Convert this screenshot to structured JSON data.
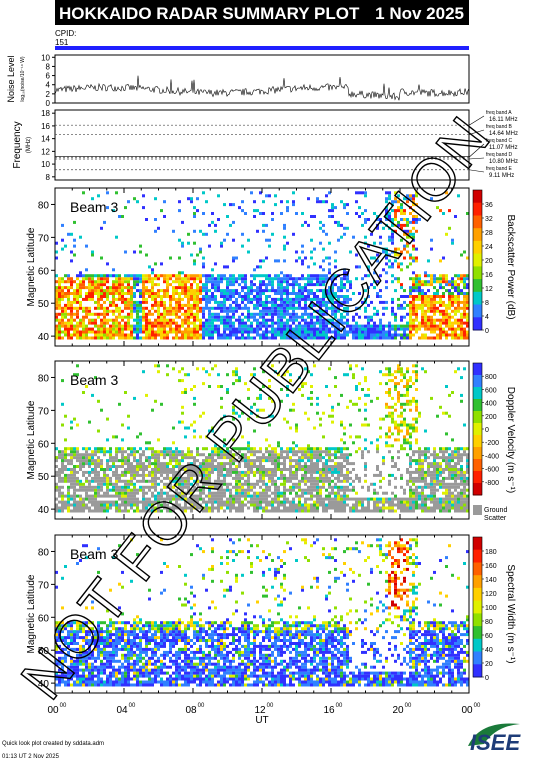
{
  "header": {
    "title": "HOKKAIDO RADAR SUMMARY PLOT",
    "date": "1 Nov 2025"
  },
  "cpid": {
    "label": "CPID:",
    "value": "151"
  },
  "noise_panel": {
    "ylabel": "Noise Level",
    "sublabel": "log₁₀(noise/10⁻¹⁸ W)",
    "ticks": [
      "0",
      "2",
      "4",
      "6",
      "8",
      "10"
    ]
  },
  "freq_panel": {
    "ylabel": "Frequency",
    "unit": "(MHz)",
    "ticks": [
      "8",
      "10",
      "12",
      "14",
      "16",
      "18"
    ],
    "bands": [
      {
        "name": "freq band A",
        "value": "16.11 MHz",
        "mhz": 16.11
      },
      {
        "name": "freq band B",
        "value": "14.64 MHz",
        "mhz": 14.64
      },
      {
        "name": "freq band C",
        "value": "11.07 MHz",
        "mhz": 11.07
      },
      {
        "name": "freq band D",
        "value": "10.80 MHz",
        "mhz": 10.8
      },
      {
        "name": "freq band E",
        "value": "9.11 MHz",
        "mhz": 9.11
      }
    ]
  },
  "chart_data": [
    {
      "type": "heatmap",
      "title": "Beam 3",
      "ylabel": "Magnetic Latitude",
      "ylim": [
        37,
        85
      ],
      "yticks": [
        40,
        50,
        60,
        70,
        80
      ],
      "colorbar": {
        "label": "Backscatter Power (dB)",
        "ticks": [
          "0",
          "4",
          "8",
          "12",
          "16",
          "20",
          "24",
          "28",
          "32",
          "36"
        ],
        "colors": [
          "#3030ff",
          "#3080ff",
          "#00c8c8",
          "#30c030",
          "#90e000",
          "#e0f000",
          "#ffd000",
          "#ffa000",
          "#ff6000",
          "#ff2000",
          "#d00000"
        ]
      }
    },
    {
      "type": "heatmap",
      "title": "Beam 3",
      "ylabel": "Magnetic Latitude",
      "ylim": [
        37,
        85
      ],
      "yticks": [
        40,
        50,
        60,
        70,
        80
      ],
      "colorbar": {
        "label": "Doppler Velocity (m s⁻¹)",
        "ticks": [
          "800",
          "600",
          "400",
          "200",
          "0",
          "-200",
          "-400",
          "-600",
          "-800"
        ],
        "colors": [
          "#3030ff",
          "#3080ff",
          "#00c8c8",
          "#30c030",
          "#90e000",
          "#e0f000",
          "#ffd000",
          "#ffa000",
          "#ff6000",
          "#ff2000",
          "#d00000"
        ],
        "ground_label": "Ground Scatter",
        "ground_color": "#9a9a9a"
      }
    },
    {
      "type": "heatmap",
      "title": "Beam 3",
      "ylabel": "Magnetic Latitude",
      "ylim": [
        37,
        85
      ],
      "yticks": [
        40,
        50,
        60,
        70,
        80
      ],
      "colorbar": {
        "label": "Spectral Width (m s⁻¹)",
        "ticks": [
          "0",
          "20",
          "40",
          "60",
          "80",
          "100",
          "120",
          "140",
          "160",
          "180"
        ],
        "colors": [
          "#3030ff",
          "#3080ff",
          "#00c8c8",
          "#30c030",
          "#90e000",
          "#e0f000",
          "#ffd000",
          "#ffa000",
          "#ff6000",
          "#ff2000",
          "#d00000"
        ]
      }
    }
  ],
  "time_axis": {
    "xlabel": "UT",
    "ticks": [
      {
        "h": "00",
        "m": "00"
      },
      {
        "h": "04",
        "m": "00"
      },
      {
        "h": "08",
        "m": "00"
      },
      {
        "h": "12",
        "m": "00"
      },
      {
        "h": "16",
        "m": "00"
      },
      {
        "h": "20",
        "m": "00"
      },
      {
        "h": "00",
        "m": "00"
      }
    ]
  },
  "watermark": "NOT FOR PUBLICATION",
  "footer": {
    "credit": "Quick look plot created by sddata.adm",
    "timestamp": "01:13 UT  2 Nov 2025",
    "logo": "ISEE"
  }
}
